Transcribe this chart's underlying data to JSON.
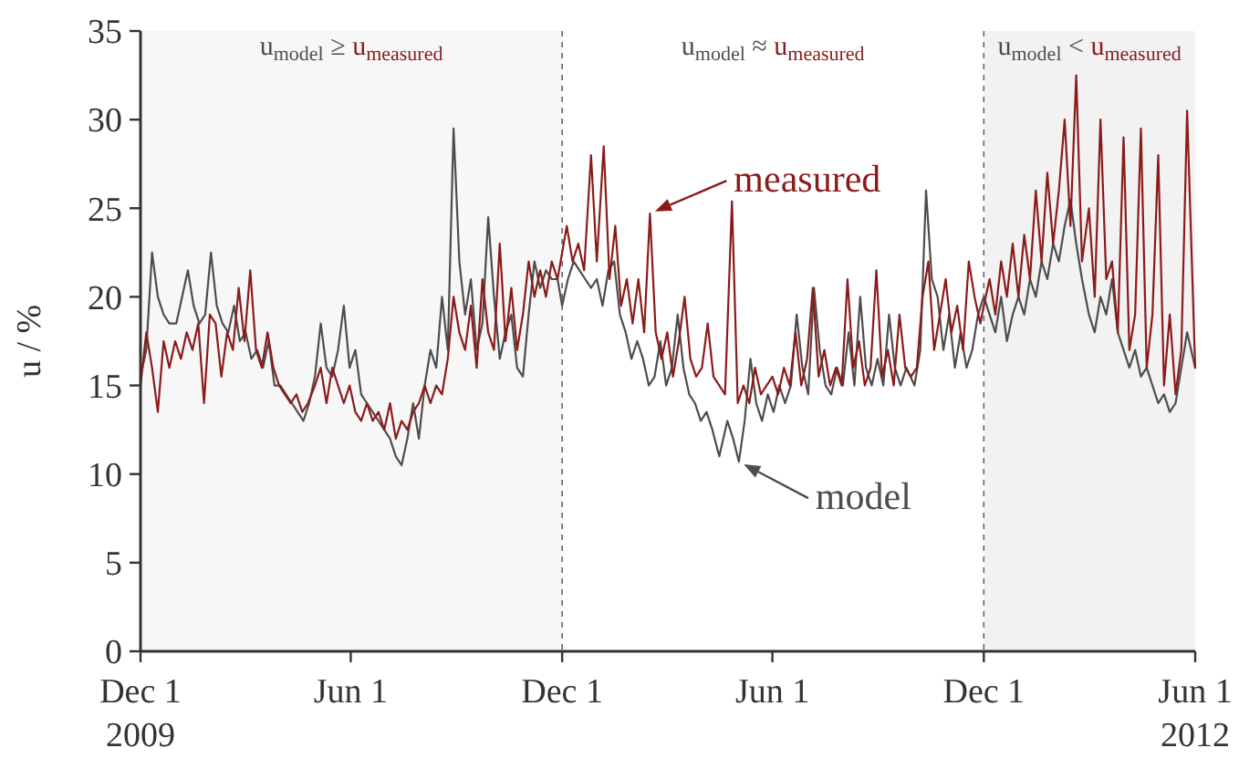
{
  "chart_data": {
    "type": "line",
    "ylabel": "u / %",
    "xlim": [
      "2009-12-01",
      "2012-06-01"
    ],
    "xticks": [
      {
        "value": "2009-12-01",
        "label": "Dec 1\n2009"
      },
      {
        "value": "2010-06-01",
        "label": "Jun 1"
      },
      {
        "value": "2010-12-01",
        "label": "Dec 1"
      },
      {
        "value": "2011-06-01",
        "label": "Jun 1"
      },
      {
        "value": "2011-12-01",
        "label": "Dec 1"
      },
      {
        "value": "2012-06-01",
        "label": "Jun 1\n2012"
      }
    ],
    "ylim": [
      0,
      35
    ],
    "yticks": [
      0,
      5,
      10,
      15,
      20,
      25,
      30,
      35
    ],
    "grid": false,
    "line_style": "solid",
    "bands": [
      {
        "axis": "x",
        "from": "2009-12-01",
        "to": "2010-12-01",
        "label": "u$_{model}$ ≥ u$_{measured}$",
        "color": "#f7f7f7"
      },
      {
        "axis": "x",
        "from": "2011-12-01",
        "to": "2012-06-01",
        "label": "u$_{model}$ < u$_{measured}$",
        "color": "#f2f2f2"
      }
    ],
    "ref_lines": [
      {
        "axis": "x",
        "value": "2010-12-01",
        "color": "#666666",
        "line_style": "dashed"
      },
      {
        "axis": "x",
        "value": "2011-12-01",
        "color": "#666666",
        "line_style": "dashed"
      }
    ],
    "annotations": [
      "u$_{model}$ ≈ u$_{measured}$",
      {
        "text": "measured",
        "x": "2011-02-15",
        "y": 24.7
      },
      {
        "text": "model",
        "x": "2011-05-03",
        "y": 10.7
      }
    ],
    "series": [
      {
        "color": "#4d4d4d",
        "x": [
          "2009-12-01",
          "2009-12-06",
          "2009-12-11",
          "2009-12-16",
          "2009-12-21",
          "2009-12-26",
          "2010-01-01",
          "2010-01-06",
          "2010-01-11",
          "2010-01-16",
          "2010-01-21",
          "2010-01-26",
          "2010-01-31",
          "2010-02-05",
          "2010-02-10",
          "2010-02-15",
          "2010-02-20",
          "2010-02-25",
          "2010-03-02",
          "2010-03-07",
          "2010-03-12",
          "2010-03-17",
          "2010-03-22",
          "2010-03-27",
          "2010-04-01",
          "2010-04-06",
          "2010-04-11",
          "2010-04-16",
          "2010-04-21",
          "2010-04-26",
          "2010-05-01",
          "2010-05-06",
          "2010-05-11",
          "2010-05-16",
          "2010-05-21",
          "2010-05-26",
          "2010-05-31",
          "2010-06-05",
          "2010-06-10",
          "2010-06-15",
          "2010-06-20",
          "2010-06-25",
          "2010-06-30",
          "2010-07-05",
          "2010-07-10",
          "2010-07-15",
          "2010-07-20",
          "2010-07-25",
          "2010-07-30",
          "2010-08-04",
          "2010-08-09",
          "2010-08-14",
          "2010-08-19",
          "2010-08-24",
          "2010-08-29",
          "2010-09-03",
          "2010-09-08",
          "2010-09-13",
          "2010-09-18",
          "2010-09-23",
          "2010-09-28",
          "2010-10-03",
          "2010-10-08",
          "2010-10-13",
          "2010-10-18",
          "2010-10-23",
          "2010-10-28",
          "2010-11-02",
          "2010-11-07",
          "2010-11-12",
          "2010-11-17",
          "2010-11-22",
          "2010-11-27",
          "2010-12-01",
          "2010-12-06",
          "2010-12-11",
          "2010-12-16",
          "2010-12-21",
          "2010-12-26",
          "2010-12-31",
          "2011-01-05",
          "2011-01-10",
          "2011-01-15",
          "2011-01-20",
          "2011-01-25",
          "2011-01-30",
          "2011-02-04",
          "2011-02-09",
          "2011-02-14",
          "2011-02-19",
          "2011-02-24",
          "2011-03-01",
          "2011-03-06",
          "2011-03-11",
          "2011-03-16",
          "2011-03-21",
          "2011-03-26",
          "2011-03-31",
          "2011-04-05",
          "2011-04-10",
          "2011-04-16",
          "2011-04-23",
          "2011-04-28",
          "2011-05-03",
          "2011-05-08",
          "2011-05-13",
          "2011-05-18",
          "2011-05-23",
          "2011-05-28",
          "2011-06-02",
          "2011-06-07",
          "2011-06-12",
          "2011-06-17",
          "2011-06-22",
          "2011-06-27",
          "2011-07-02",
          "2011-07-07",
          "2011-07-12",
          "2011-07-17",
          "2011-07-22",
          "2011-07-27",
          "2011-08-01",
          "2011-08-06",
          "2011-08-11",
          "2011-08-16",
          "2011-08-21",
          "2011-08-26",
          "2011-08-31",
          "2011-09-05",
          "2011-09-10",
          "2011-09-15",
          "2011-09-20",
          "2011-09-25",
          "2011-10-02",
          "2011-10-07",
          "2011-10-12",
          "2011-10-17",
          "2011-10-22",
          "2011-10-27",
          "2011-11-01",
          "2011-11-06",
          "2011-11-11",
          "2011-11-16",
          "2011-11-21",
          "2011-11-26",
          "2011-12-01",
          "2011-12-06",
          "2011-12-11",
          "2011-12-16",
          "2011-12-21",
          "2011-12-26",
          "2011-12-31",
          "2012-01-05",
          "2012-01-10",
          "2012-01-15",
          "2012-01-20",
          "2012-01-25",
          "2012-01-30",
          "2012-02-04",
          "2012-02-09",
          "2012-02-14",
          "2012-02-19",
          "2012-02-24",
          "2012-03-01",
          "2012-03-06",
          "2012-03-11",
          "2012-03-16",
          "2012-03-21",
          "2012-03-26",
          "2012-03-31",
          "2012-04-05",
          "2012-04-10",
          "2012-04-15",
          "2012-04-20",
          "2012-04-25",
          "2012-04-30",
          "2012-05-05",
          "2012-05-10",
          "2012-05-15",
          "2012-05-20",
          "2012-05-25",
          "2012-06-01"
        ],
        "values": [
          15.5,
          17,
          22.5,
          20,
          19,
          18.5,
          18.5,
          20,
          21.5,
          19.5,
          18.5,
          19,
          22.5,
          19.5,
          18.5,
          18,
          19.5,
          17.5,
          18,
          16.5,
          17,
          16,
          17.5,
          15,
          15,
          14.5,
          14,
          13.5,
          13,
          14,
          15.5,
          18.5,
          16,
          15.5,
          17,
          19.5,
          16,
          17,
          14.5,
          14,
          13.5,
          13,
          12.5,
          12,
          11,
          10.5,
          12,
          14,
          12,
          15,
          17,
          16,
          20,
          17,
          29.5,
          22,
          19,
          21,
          17,
          18.5,
          24.5,
          20,
          16.5,
          18,
          19,
          16,
          15.5,
          19,
          22,
          20.5,
          21.5,
          21,
          21,
          19.5,
          21,
          22,
          21.5,
          21,
          20.5,
          21,
          19.5,
          21.5,
          22,
          19,
          18,
          16.5,
          17.5,
          16.5,
          15,
          15.5,
          17.5,
          15,
          16,
          19,
          16,
          14.5,
          14,
          13,
          13.5,
          12.5,
          11,
          13,
          12,
          10.7,
          13,
          16.5,
          14,
          13,
          14.5,
          13.5,
          15,
          14,
          15,
          19,
          16,
          14.5,
          20.5,
          17,
          15,
          14.5,
          16,
          15,
          18,
          15,
          20,
          16,
          15,
          16.5,
          15,
          19,
          16,
          15,
          16,
          15,
          17,
          26,
          21,
          20,
          17,
          19,
          16,
          18,
          16,
          17,
          19,
          20,
          19,
          18,
          20,
          17.5,
          19,
          20,
          19,
          21,
          20,
          22,
          21,
          23,
          22,
          24,
          25.5,
          23,
          21,
          19,
          18,
          20,
          19,
          21,
          18,
          17,
          16,
          17,
          15.5,
          16,
          15,
          14,
          14.5,
          13.5,
          14,
          16,
          18,
          16
        ]
      },
      {
        "color": "#8b1a1a",
        "x": [
          "2009-12-01",
          "2009-12-06",
          "2009-12-11",
          "2009-12-16",
          "2009-12-21",
          "2009-12-26",
          "2009-12-31",
          "2010-01-05",
          "2010-01-10",
          "2010-01-15",
          "2010-01-20",
          "2010-01-25",
          "2010-01-30",
          "2010-02-04",
          "2010-02-09",
          "2010-02-14",
          "2010-02-19",
          "2010-02-24",
          "2010-03-01",
          "2010-03-06",
          "2010-03-11",
          "2010-03-16",
          "2010-03-21",
          "2010-03-26",
          "2010-03-31",
          "2010-04-05",
          "2010-04-10",
          "2010-04-15",
          "2010-04-20",
          "2010-04-25",
          "2010-05-01",
          "2010-05-06",
          "2010-05-11",
          "2010-05-16",
          "2010-05-21",
          "2010-05-26",
          "2010-05-31",
          "2010-06-05",
          "2010-06-10",
          "2010-06-15",
          "2010-06-20",
          "2010-06-25",
          "2010-06-30",
          "2010-07-05",
          "2010-07-10",
          "2010-07-15",
          "2010-07-20",
          "2010-07-25",
          "2010-07-30",
          "2010-08-04",
          "2010-08-09",
          "2010-08-14",
          "2010-08-19",
          "2010-08-24",
          "2010-08-29",
          "2010-09-03",
          "2010-09-08",
          "2010-09-13",
          "2010-09-18",
          "2010-09-23",
          "2010-09-28",
          "2010-10-03",
          "2010-10-08",
          "2010-10-13",
          "2010-10-18",
          "2010-10-23",
          "2010-10-28",
          "2010-11-02",
          "2010-11-07",
          "2010-11-12",
          "2010-11-17",
          "2010-11-22",
          "2010-11-27",
          "2010-12-01",
          "2010-12-05",
          "2010-12-10",
          "2010-12-15",
          "2010-12-20",
          "2010-12-26",
          "2010-12-31",
          "2011-01-06",
          "2011-01-11",
          "2011-01-16",
          "2011-01-21",
          "2011-01-26",
          "2011-01-31",
          "2011-02-05",
          "2011-02-10",
          "2011-02-15",
          "2011-02-20",
          "2011-02-25",
          "2011-03-02",
          "2011-03-07",
          "2011-03-12",
          "2011-03-17",
          "2011-03-22",
          "2011-03-27",
          "2011-04-01",
          "2011-04-06",
          "2011-04-11",
          "2011-04-16",
          "2011-04-21",
          "2011-04-27",
          "2011-05-02",
          "2011-05-07",
          "2011-05-12",
          "2011-05-17",
          "2011-05-22",
          "2011-05-27",
          "2011-06-01",
          "2011-06-06",
          "2011-06-11",
          "2011-06-16",
          "2011-06-21",
          "2011-06-26",
          "2011-07-01",
          "2011-07-06",
          "2011-07-11",
          "2011-07-16",
          "2011-07-21",
          "2011-07-26",
          "2011-07-31",
          "2011-08-05",
          "2011-08-10",
          "2011-08-15",
          "2011-08-20",
          "2011-08-25",
          "2011-08-30",
          "2011-09-04",
          "2011-09-09",
          "2011-09-14",
          "2011-09-19",
          "2011-09-24",
          "2011-09-29",
          "2011-10-04",
          "2011-10-09",
          "2011-10-14",
          "2011-10-19",
          "2011-10-24",
          "2011-10-29",
          "2011-11-03",
          "2011-11-08",
          "2011-11-13",
          "2011-11-18",
          "2011-11-23",
          "2011-11-28",
          "2011-12-01",
          "2011-12-06",
          "2011-12-11",
          "2011-12-16",
          "2011-12-21",
          "2011-12-26",
          "2011-12-31",
          "2012-01-05",
          "2012-01-10",
          "2012-01-15",
          "2012-01-20",
          "2012-01-25",
          "2012-01-30",
          "2012-02-04",
          "2012-02-09",
          "2012-02-14",
          "2012-02-19",
          "2012-02-24",
          "2012-03-01",
          "2012-03-06",
          "2012-03-11",
          "2012-03-16",
          "2012-03-21",
          "2012-03-26",
          "2012-03-31",
          "2012-04-05",
          "2012-04-10",
          "2012-04-15",
          "2012-04-20",
          "2012-04-25",
          "2012-04-30",
          "2012-05-05",
          "2012-05-10",
          "2012-05-15",
          "2012-05-20",
          "2012-05-25",
          "2012-06-01"
        ],
        "values": [
          15,
          18,
          16,
          13.5,
          17.5,
          16,
          17.5,
          16.5,
          18,
          17,
          18.5,
          14,
          19,
          18.5,
          15.5,
          18,
          17,
          20.5,
          17.5,
          21.5,
          17,
          16,
          18,
          16,
          15,
          14.5,
          14,
          14.5,
          13.5,
          14,
          15,
          16,
          14,
          16,
          15,
          14,
          15,
          13.5,
          13,
          14,
          13,
          13.5,
          12.5,
          14,
          12,
          13,
          12.5,
          13.5,
          14,
          15,
          14,
          15,
          14.5,
          16.5,
          20,
          18,
          17,
          19.5,
          16,
          21,
          18,
          17,
          23,
          17.5,
          20.5,
          17,
          19,
          22,
          20,
          21.5,
          20,
          22,
          21,
          22.5,
          24,
          22,
          23,
          21.5,
          28,
          22,
          28.5,
          21,
          24,
          19.5,
          21,
          18.5,
          21,
          18,
          24.7,
          18,
          16.5,
          18,
          15.5,
          17.5,
          20,
          16.5,
          15.5,
          16,
          18.5,
          15.5,
          15,
          14.5,
          25.4,
          14,
          15,
          14,
          16,
          14.5,
          15,
          15.5,
          14.5,
          16,
          15,
          18,
          15,
          16.5,
          20.5,
          15.5,
          17,
          15,
          16,
          15,
          21,
          16,
          17.5,
          15,
          16,
          21.5,
          15.5,
          17,
          15,
          19,
          16,
          15.5,
          16,
          20,
          22,
          17,
          19,
          21,
          18,
          19.5,
          17,
          22,
          20,
          18.5,
          19.5,
          21,
          19,
          22,
          20,
          23,
          20,
          23.5,
          21,
          26,
          22,
          27,
          23,
          26,
          30,
          24,
          32.5,
          22,
          25,
          20,
          30,
          21,
          22,
          18,
          29,
          17,
          19,
          29.5,
          16,
          19,
          28,
          15,
          19,
          14.5,
          17,
          30.5,
          16
        ]
      }
    ]
  }
}
